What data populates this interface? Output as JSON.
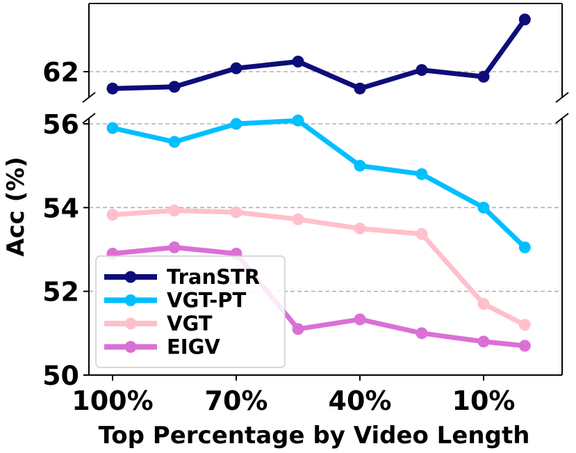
{
  "chart_data": {
    "type": "line",
    "xlabel": "Top Percentage by Video Length",
    "ylabel": "Acc (%)",
    "x": [
      100,
      85,
      70,
      55,
      40,
      25,
      10,
      0
    ],
    "x_tick_values": [
      100,
      70,
      40,
      10
    ],
    "x_tick_labels": [
      "100%",
      "70%",
      "40%",
      "10%"
    ],
    "x_direction": "descending",
    "broken_y_axis": true,
    "upper_panel": {
      "ylim": [
        61.5,
        63.7
      ],
      "yticks": [
        62
      ],
      "ytick_labels": [
        "62"
      ]
    },
    "lower_panel": {
      "ylim": [
        50,
        56.1
      ],
      "yticks": [
        50,
        52,
        54,
        56
      ],
      "ytick_labels": [
        "50",
        "52",
        "54",
        "56"
      ]
    },
    "grid": "horizontal dashed",
    "legend_position": "lower-left",
    "series": [
      {
        "name": "TranSTR",
        "color": "#0d0d7a",
        "panel": "upper",
        "values": [
          61.5,
          61.55,
          62.1,
          62.3,
          61.5,
          62.05,
          61.85,
          63.55
        ]
      },
      {
        "name": "VGT-PT",
        "color": "#00bfff",
        "panel": "lower",
        "values": [
          55.9,
          55.57,
          56.0,
          56.08,
          55.0,
          54.8,
          54.0,
          53.05
        ]
      },
      {
        "name": "VGT",
        "color": "#ffc0cb",
        "panel": "lower",
        "values": [
          53.83,
          53.93,
          53.89,
          53.72,
          53.5,
          53.37,
          51.7,
          51.2
        ]
      },
      {
        "name": "EIGV",
        "color": "#da70d6",
        "panel": "lower",
        "values": [
          52.9,
          53.05,
          52.9,
          51.1,
          51.33,
          51.0,
          50.8,
          50.7
        ]
      }
    ]
  }
}
